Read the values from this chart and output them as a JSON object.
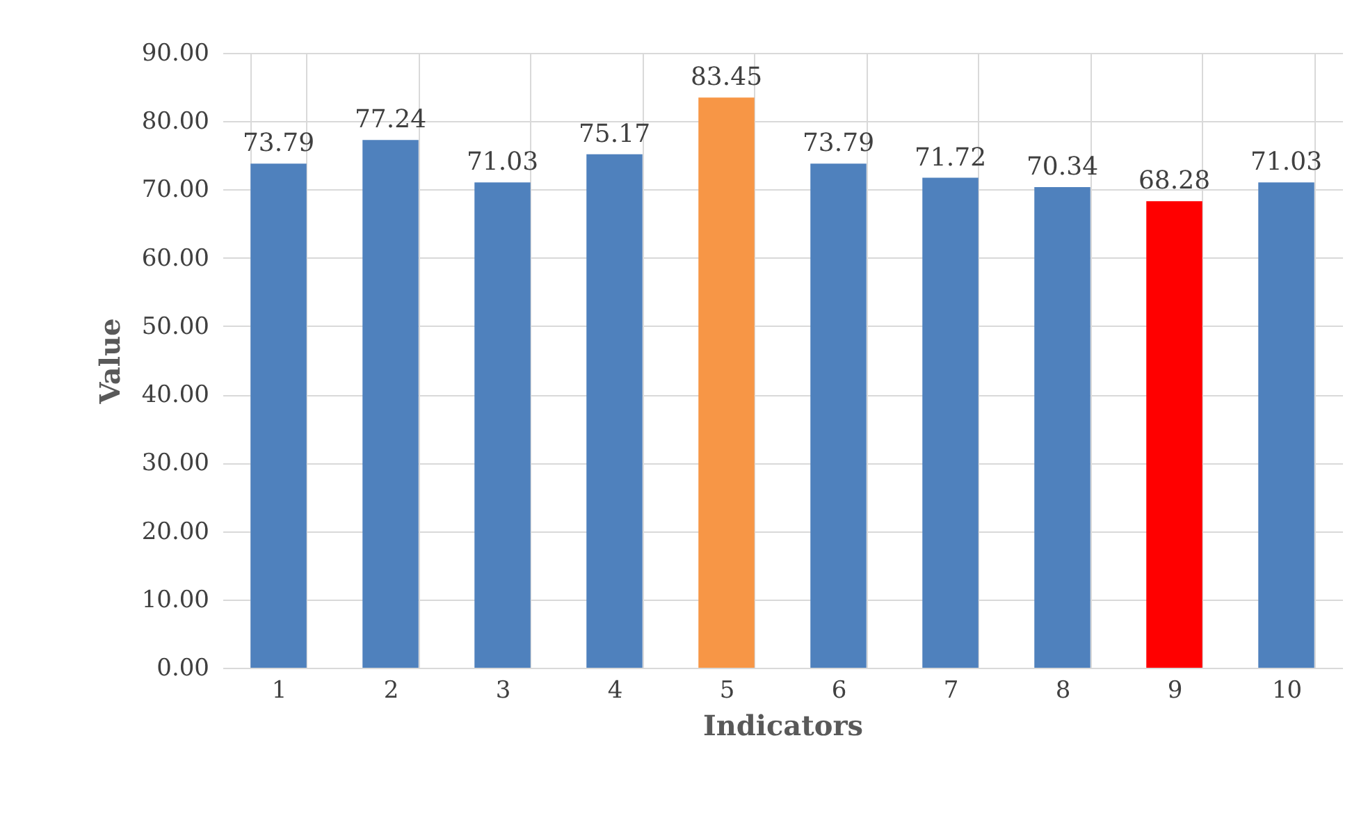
{
  "chart_data": {
    "type": "bar",
    "xlabel": "Indicators",
    "ylabel": "Value",
    "categories": [
      "1",
      "2",
      "3",
      "4",
      "5",
      "6",
      "7",
      "8",
      "9",
      "10"
    ],
    "values": [
      73.79,
      77.24,
      71.03,
      75.17,
      83.45,
      73.79,
      71.72,
      70.34,
      68.28,
      71.03
    ],
    "colors": [
      "#4f81bd",
      "#4f81bd",
      "#4f81bd",
      "#4f81bd",
      "#f79646",
      "#4f81bd",
      "#4f81bd",
      "#4f81bd",
      "#ff0000",
      "#4f81bd"
    ],
    "ylim": [
      0,
      90
    ],
    "yticks": [
      {
        "value": 0,
        "label": "0.00"
      },
      {
        "value": 10,
        "label": "10.00"
      },
      {
        "value": 20,
        "label": "20.00"
      },
      {
        "value": 30,
        "label": "30.00"
      },
      {
        "value": 40,
        "label": "40.00"
      },
      {
        "value": 50,
        "label": "50.00"
      },
      {
        "value": 60,
        "label": "60.00"
      },
      {
        "value": 70,
        "label": "70.00"
      },
      {
        "value": 80,
        "label": "80.00"
      },
      {
        "value": 90,
        "label": "90.00"
      }
    ],
    "grid": true,
    "data_labels": true
  }
}
